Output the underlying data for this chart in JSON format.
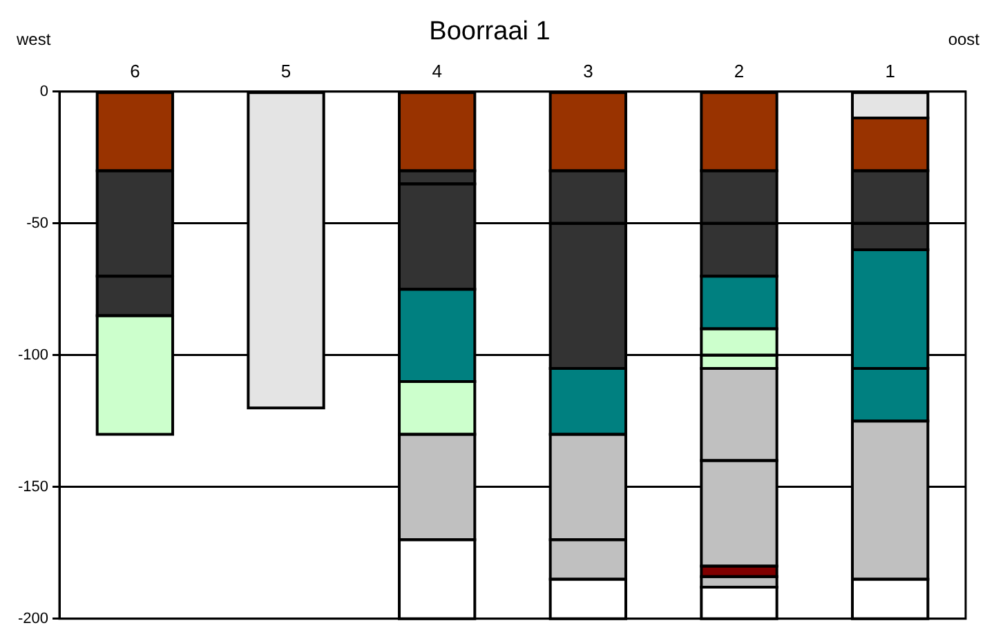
{
  "chart_data": {
    "type": "bar",
    "stacked": true,
    "title": "Boorraai 1",
    "annotations": [
      "west",
      "oost"
    ],
    "categories": [
      "6",
      "5",
      "4",
      "3",
      "2",
      "1"
    ],
    "ylim": [
      -200,
      0
    ],
    "yticks": [
      0,
      -50,
      -100,
      -150,
      -200
    ],
    "grid": "y",
    "legend": false,
    "series": [
      {
        "values": [
          -30,
          -120,
          -30,
          -30,
          -30,
          -10
        ],
        "colors": [
          "#993300",
          "#e4e4e4",
          "#993300",
          "#993300",
          "#993300",
          "#e4e4e4"
        ]
      },
      {
        "values": [
          -40,
          null,
          -5,
          -20,
          -20,
          -20
        ],
        "colors": [
          "#333333",
          null,
          "#333333",
          "#333333",
          "#333333",
          "#993300"
        ]
      },
      {
        "values": [
          -15,
          null,
          -40,
          -55,
          -20,
          -20
        ],
        "colors": [
          "#333333",
          null,
          "#333333",
          "#333333",
          "#333333",
          "#333333"
        ]
      },
      {
        "values": [
          -45,
          null,
          -35,
          -25,
          -20,
          -10
        ],
        "colors": [
          "#ccffcc",
          null,
          "#008080",
          "#008080",
          "#008080",
          "#333333"
        ]
      },
      {
        "values": [
          null,
          null,
          -20,
          -40,
          -10,
          -45
        ],
        "colors": [
          null,
          null,
          "#ccffcc",
          "#c0c0c0",
          "#ccffcc",
          "#008080"
        ]
      },
      {
        "values": [
          null,
          null,
          -40,
          -15,
          -5,
          -20
        ],
        "colors": [
          null,
          null,
          "#c0c0c0",
          "#c0c0c0",
          "#ccffcc",
          "#008080"
        ]
      },
      {
        "values": [
          null,
          null,
          -30,
          -15,
          -35,
          -60
        ],
        "colors": [
          null,
          null,
          "#ffffff",
          "#ffffff",
          "#c0c0c0",
          "#c0c0c0"
        ]
      },
      {
        "values": [
          null,
          null,
          null,
          null,
          -40,
          -15
        ],
        "colors": [
          null,
          null,
          null,
          null,
          "#c0c0c0",
          "#ffffff"
        ]
      },
      {
        "values": [
          null,
          null,
          null,
          null,
          -4,
          null
        ],
        "colors": [
          null,
          null,
          null,
          null,
          "#800000",
          null
        ]
      },
      {
        "values": [
          null,
          null,
          null,
          null,
          -4,
          null
        ],
        "colors": [
          null,
          null,
          null,
          null,
          "#c0c0c0",
          null
        ]
      },
      {
        "values": [
          null,
          null,
          null,
          null,
          -12,
          null
        ],
        "colors": [
          null,
          null,
          null,
          null,
          "#ffffff",
          null
        ]
      }
    ]
  }
}
